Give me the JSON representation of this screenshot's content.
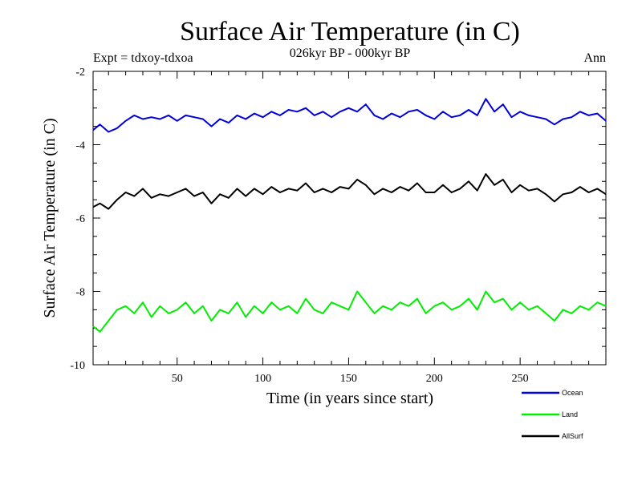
{
  "chart_data": {
    "type": "line",
    "title": "Surface Air Temperature (in C)",
    "subtitle": "026kyr BP - 000kyr BP",
    "expt_label": "Expt = tdxoy-tdxoa",
    "season_label": "Ann",
    "xlabel": "Time (in years since start)",
    "ylabel": "Surface Air Temperature (in C)",
    "xlim": [
      1,
      300
    ],
    "ylim": [
      -10,
      -2
    ],
    "x_ticks": [
      "50",
      "100",
      "150",
      "200",
      "250"
    ],
    "x_tick_values": [
      50,
      100,
      150,
      200,
      250
    ],
    "y_ticks": [
      "-2",
      "-4",
      "-6",
      "-8",
      "-10"
    ],
    "y_tick_values": [
      -2,
      -4,
      -6,
      -8,
      -10
    ],
    "grid": false,
    "legend_position": "bottom-right",
    "series": [
      {
        "name": "Ocean",
        "color": "#0000dd",
        "points": [
          [
            1,
            -3.6
          ],
          [
            5,
            -3.45
          ],
          [
            10,
            -3.65
          ],
          [
            15,
            -3.55
          ],
          [
            20,
            -3.35
          ],
          [
            25,
            -3.2
          ],
          [
            30,
            -3.3
          ],
          [
            35,
            -3.25
          ],
          [
            40,
            -3.3
          ],
          [
            45,
            -3.2
          ],
          [
            50,
            -3.35
          ],
          [
            55,
            -3.2
          ],
          [
            60,
            -3.25
          ],
          [
            65,
            -3.3
          ],
          [
            70,
            -3.5
          ],
          [
            75,
            -3.3
          ],
          [
            80,
            -3.4
          ],
          [
            85,
            -3.2
          ],
          [
            90,
            -3.3
          ],
          [
            95,
            -3.15
          ],
          [
            100,
            -3.25
          ],
          [
            105,
            -3.1
          ],
          [
            110,
            -3.2
          ],
          [
            115,
            -3.05
          ],
          [
            120,
            -3.1
          ],
          [
            125,
            -3.0
          ],
          [
            130,
            -3.2
          ],
          [
            135,
            -3.1
          ],
          [
            140,
            -3.25
          ],
          [
            145,
            -3.1
          ],
          [
            150,
            -3.0
          ],
          [
            155,
            -3.1
          ],
          [
            160,
            -2.9
          ],
          [
            165,
            -3.2
          ],
          [
            170,
            -3.3
          ],
          [
            175,
            -3.15
          ],
          [
            180,
            -3.25
          ],
          [
            185,
            -3.1
          ],
          [
            190,
            -3.05
          ],
          [
            195,
            -3.2
          ],
          [
            200,
            -3.3
          ],
          [
            205,
            -3.1
          ],
          [
            210,
            -3.25
          ],
          [
            215,
            -3.2
          ],
          [
            220,
            -3.05
          ],
          [
            225,
            -3.2
          ],
          [
            230,
            -2.75
          ],
          [
            235,
            -3.1
          ],
          [
            240,
            -2.9
          ],
          [
            245,
            -3.25
          ],
          [
            250,
            -3.1
          ],
          [
            255,
            -3.2
          ],
          [
            260,
            -3.25
          ],
          [
            265,
            -3.3
          ],
          [
            270,
            -3.45
          ],
          [
            275,
            -3.3
          ],
          [
            280,
            -3.25
          ],
          [
            285,
            -3.1
          ],
          [
            290,
            -3.2
          ],
          [
            295,
            -3.15
          ],
          [
            300,
            -3.35
          ]
        ]
      },
      {
        "name": "Land",
        "color": "#00ee00",
        "points": [
          [
            1,
            -8.95
          ],
          [
            5,
            -9.1
          ],
          [
            10,
            -8.8
          ],
          [
            15,
            -8.5
          ],
          [
            20,
            -8.4
          ],
          [
            25,
            -8.6
          ],
          [
            30,
            -8.3
          ],
          [
            35,
            -8.7
          ],
          [
            40,
            -8.4
          ],
          [
            45,
            -8.6
          ],
          [
            50,
            -8.5
          ],
          [
            55,
            -8.3
          ],
          [
            60,
            -8.6
          ],
          [
            65,
            -8.4
          ],
          [
            70,
            -8.8
          ],
          [
            75,
            -8.5
          ],
          [
            80,
            -8.6
          ],
          [
            85,
            -8.3
          ],
          [
            90,
            -8.7
          ],
          [
            95,
            -8.4
          ],
          [
            100,
            -8.6
          ],
          [
            105,
            -8.3
          ],
          [
            110,
            -8.5
          ],
          [
            115,
            -8.4
          ],
          [
            120,
            -8.6
          ],
          [
            125,
            -8.2
          ],
          [
            130,
            -8.5
          ],
          [
            135,
            -8.6
          ],
          [
            140,
            -8.3
          ],
          [
            145,
            -8.4
          ],
          [
            150,
            -8.5
          ],
          [
            155,
            -8.0
          ],
          [
            160,
            -8.3
          ],
          [
            165,
            -8.6
          ],
          [
            170,
            -8.4
          ],
          [
            175,
            -8.5
          ],
          [
            180,
            -8.3
          ],
          [
            185,
            -8.4
          ],
          [
            190,
            -8.2
          ],
          [
            195,
            -8.6
          ],
          [
            200,
            -8.4
          ],
          [
            205,
            -8.3
          ],
          [
            210,
            -8.5
          ],
          [
            215,
            -8.4
          ],
          [
            220,
            -8.2
          ],
          [
            225,
            -8.5
          ],
          [
            230,
            -8.0
          ],
          [
            235,
            -8.3
          ],
          [
            240,
            -8.2
          ],
          [
            245,
            -8.5
          ],
          [
            250,
            -8.3
          ],
          [
            255,
            -8.5
          ],
          [
            260,
            -8.4
          ],
          [
            265,
            -8.6
          ],
          [
            270,
            -8.8
          ],
          [
            275,
            -8.5
          ],
          [
            280,
            -8.6
          ],
          [
            285,
            -8.4
          ],
          [
            290,
            -8.5
          ],
          [
            295,
            -8.3
          ],
          [
            300,
            -8.4
          ]
        ]
      },
      {
        "name": "AllSurf",
        "color": "#000000",
        "points": [
          [
            1,
            -5.7
          ],
          [
            5,
            -5.6
          ],
          [
            10,
            -5.75
          ],
          [
            15,
            -5.5
          ],
          [
            20,
            -5.3
          ],
          [
            25,
            -5.4
          ],
          [
            30,
            -5.2
          ],
          [
            35,
            -5.45
          ],
          [
            40,
            -5.35
          ],
          [
            45,
            -5.4
          ],
          [
            50,
            -5.3
          ],
          [
            55,
            -5.2
          ],
          [
            60,
            -5.4
          ],
          [
            65,
            -5.3
          ],
          [
            70,
            -5.6
          ],
          [
            75,
            -5.35
          ],
          [
            80,
            -5.45
          ],
          [
            85,
            -5.2
          ],
          [
            90,
            -5.4
          ],
          [
            95,
            -5.2
          ],
          [
            100,
            -5.35
          ],
          [
            105,
            -5.15
          ],
          [
            110,
            -5.3
          ],
          [
            115,
            -5.2
          ],
          [
            120,
            -5.25
          ],
          [
            125,
            -5.05
          ],
          [
            130,
            -5.3
          ],
          [
            135,
            -5.2
          ],
          [
            140,
            -5.3
          ],
          [
            145,
            -5.15
          ],
          [
            150,
            -5.2
          ],
          [
            155,
            -4.95
          ],
          [
            160,
            -5.1
          ],
          [
            165,
            -5.35
          ],
          [
            170,
            -5.2
          ],
          [
            175,
            -5.3
          ],
          [
            180,
            -5.15
          ],
          [
            185,
            -5.25
          ],
          [
            190,
            -5.05
          ],
          [
            195,
            -5.3
          ],
          [
            200,
            -5.3
          ],
          [
            205,
            -5.1
          ],
          [
            210,
            -5.3
          ],
          [
            215,
            -5.2
          ],
          [
            220,
            -5.0
          ],
          [
            225,
            -5.25
          ],
          [
            230,
            -4.8
          ],
          [
            235,
            -5.1
          ],
          [
            240,
            -4.95
          ],
          [
            245,
            -5.3
          ],
          [
            250,
            -5.1
          ],
          [
            255,
            -5.25
          ],
          [
            260,
            -5.2
          ],
          [
            265,
            -5.35
          ],
          [
            270,
            -5.55
          ],
          [
            275,
            -5.35
          ],
          [
            280,
            -5.3
          ],
          [
            285,
            -5.15
          ],
          [
            290,
            -5.3
          ],
          [
            295,
            -5.2
          ],
          [
            300,
            -5.35
          ]
        ]
      }
    ]
  }
}
